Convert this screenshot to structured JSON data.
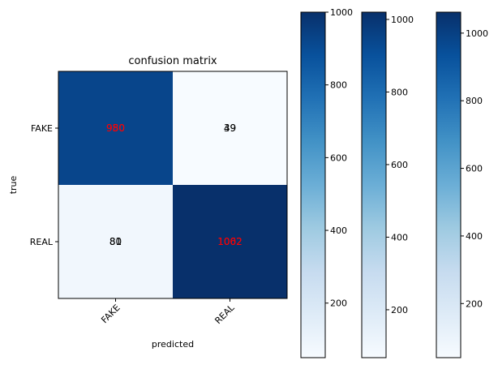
{
  "chart_data": {
    "type": "heatmap",
    "title": "confusion matrix",
    "xlabel": "predicted",
    "ylabel": "true",
    "x_categories": [
      "FAKE",
      "REAL"
    ],
    "y_categories": [
      "FAKE",
      "REAL"
    ],
    "colormap": "Blues",
    "matrix": [
      [
        980,
        49
      ],
      [
        81,
        1062
      ]
    ],
    "overlaid_cell_labels": [
      {
        "row": 0,
        "col": 0,
        "texts": [
          "950",
          "980"
        ],
        "color": "#ff0000"
      },
      {
        "row": 0,
        "col": 1,
        "texts": [
          "39",
          "49"
        ],
        "color": "#000000"
      },
      {
        "row": 1,
        "col": 0,
        "texts": [
          "80",
          "81"
        ],
        "color": "#000000"
      },
      {
        "row": 1,
        "col": 1,
        "texts": [
          "1062",
          "1002"
        ],
        "color": "#ff0000"
      }
    ],
    "colorbars": [
      {
        "min": 50,
        "max": 1000,
        "ticks": [
          200,
          400,
          600,
          800,
          1000
        ]
      },
      {
        "min": 68,
        "max": 1020,
        "ticks": [
          200,
          400,
          600,
          800,
          1000
        ]
      },
      {
        "min": 40,
        "max": 1062,
        "ticks": [
          200,
          400,
          600,
          800,
          1000
        ]
      }
    ],
    "grid": false
  }
}
